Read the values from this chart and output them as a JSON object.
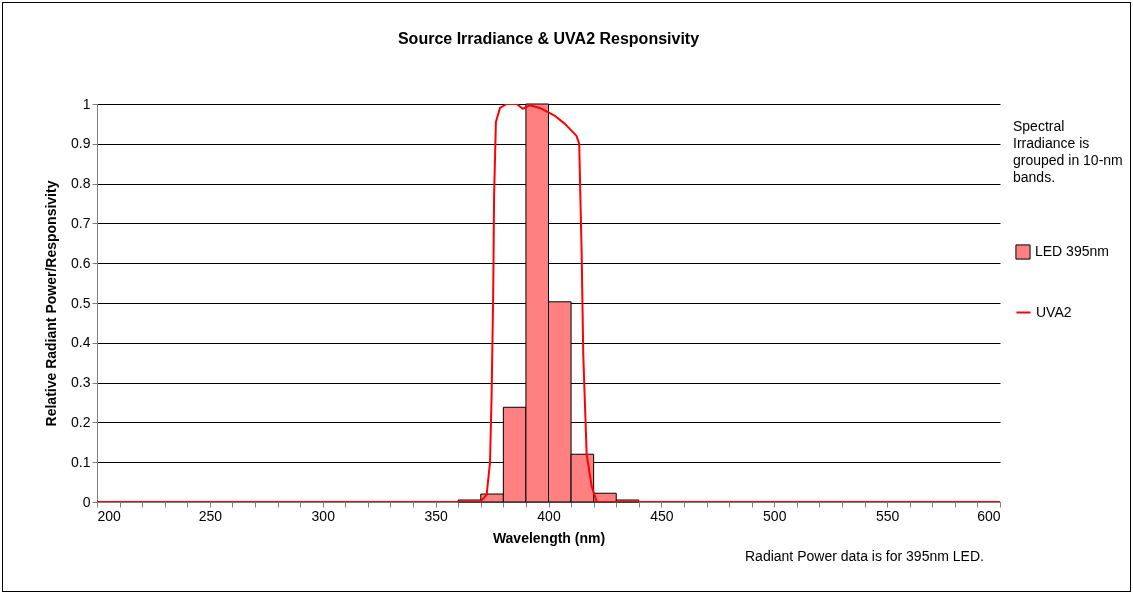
{
  "chart_data": {
    "type": "histogram",
    "title": "Source Irradiance & UVA2 Responsivity",
    "xlabel": "Wavelength (nm)",
    "ylabel": "Relative Radiant Power/Responsivity",
    "annotations": [
      "Spectral Irradiance is grouped in 10-nm bands.",
      "Radiant Power data is for 395nm LED."
    ],
    "bins": [
      360,
      370,
      380,
      390,
      400,
      410,
      420,
      430,
      440
    ],
    "series": [
      {
        "name": "LED 395nm",
        "color": "#ff8080",
        "values": [
          0.005,
          0.02,
          0.238,
          1.0,
          0.503,
          0.12,
          0.022,
          0.005
        ]
      },
      {
        "name": "UVA2",
        "type": "line",
        "color": "#ff0000",
        "x": [
          200,
          351.9,
          369.6,
          372.6,
          374.1,
          374.8,
          375.5,
          375.9,
          376.7,
          378.5,
          381.5,
          385.9,
          388.6,
          391.8,
          396.2,
          402.9,
          407.3,
          412.4,
          413.6,
          414.7,
          415.4,
          416.9,
          419.1,
          421.4,
          440.5,
          600
        ],
        "values": [
          0,
          0,
          0,
          0.018,
          0.1,
          0.27,
          0.52,
          0.77,
          0.955,
          0.99,
          1.0,
          1.0,
          0.988,
          0.997,
          0.99,
          0.97,
          0.95,
          0.92,
          0.9,
          0.62,
          0.37,
          0.12,
          0.04,
          0,
          0,
          0
        ]
      }
    ],
    "xlim": [
      200,
      600
    ],
    "xticks": [
      200,
      {
        "value": 210,
        "label": null
      },
      {
        "value": 220,
        "label": null
      },
      {
        "value": 230,
        "label": null
      },
      {
        "value": 240,
        "label": null
      },
      250,
      {
        "value": 260,
        "label": null
      },
      {
        "value": 270,
        "label": null
      },
      {
        "value": 280,
        "label": null
      },
      {
        "value": 290,
        "label": null
      },
      300,
      {
        "value": 310,
        "label": null
      },
      {
        "value": 320,
        "label": null
      },
      {
        "value": 330,
        "label": null
      },
      {
        "value": 340,
        "label": null
      },
      350,
      {
        "value": 360,
        "label": null
      },
      {
        "value": 370,
        "label": null
      },
      {
        "value": 380,
        "label": null
      },
      {
        "value": 390,
        "label": null
      },
      400,
      {
        "value": 410,
        "label": null
      },
      {
        "value": 420,
        "label": null
      },
      {
        "value": 430,
        "label": null
      },
      {
        "value": 440,
        "label": null
      },
      450,
      {
        "value": 460,
        "label": null
      },
      {
        "value": 470,
        "label": null
      },
      {
        "value": 480,
        "label": null
      },
      {
        "value": 490,
        "label": null
      },
      500,
      {
        "value": 510,
        "label": null
      },
      {
        "value": 520,
        "label": null
      },
      {
        "value": 530,
        "label": null
      },
      {
        "value": 540,
        "label": null
      },
      550,
      {
        "value": 560,
        "label": null
      },
      {
        "value": 570,
        "label": null
      },
      {
        "value": 580,
        "label": null
      },
      {
        "value": 590,
        "label": null
      },
      600
    ],
    "ylim": [
      0,
      1
    ],
    "yticks": [
      0,
      0.1,
      0.2,
      0.3,
      0.4,
      0.5,
      0.6,
      0.7,
      0.8,
      0.9,
      1
    ],
    "grid": "y",
    "legend": "right"
  }
}
